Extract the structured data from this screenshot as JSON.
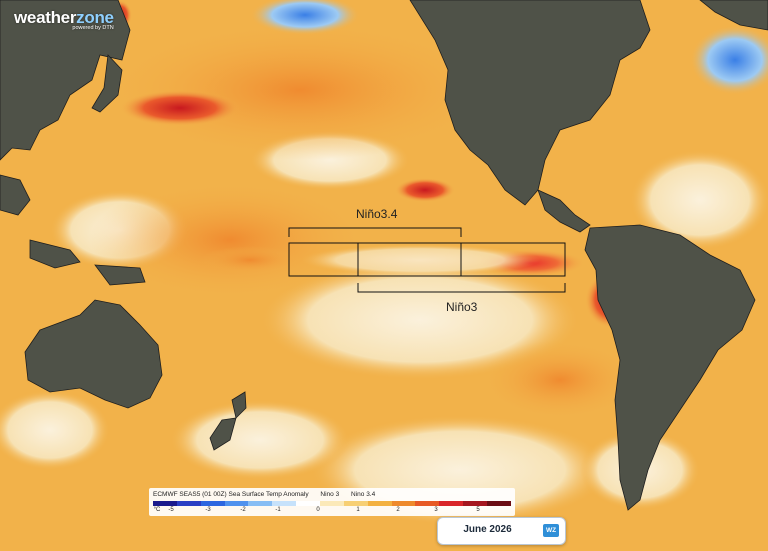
{
  "brand": {
    "name_a": "weather",
    "name_b": "zone",
    "tagline": "powered by DTN"
  },
  "regions": {
    "nino34_label": "Niño3.4",
    "nino3_label": "Niño3"
  },
  "legend": {
    "title": "ECMWF SEAS5 (01 00Z) Sea Surface Temp Anomaly",
    "key_nino3": "Nino 3",
    "key_nino34": "Nino 3.4",
    "unit": "°C",
    "ticks": [
      "-5",
      "-3",
      "-2",
      "-1",
      "0",
      "1",
      "2",
      "3",
      "5"
    ],
    "colors": [
      "#1a1a8c",
      "#2a3fc4",
      "#2d67e0",
      "#4f92ee",
      "#86bdf4",
      "#c6e2fb",
      "#ffffff",
      "#fbe9b8",
      "#f7cf73",
      "#f3b13f",
      "#ee8a2c",
      "#e75a26",
      "#d9262a",
      "#a51720",
      "#6b0d14"
    ]
  },
  "date_panel": {
    "date": "June 2026",
    "logo": "WZ"
  },
  "colors": {
    "ocean_warm": "#f2b24a",
    "ocean_neutral": "#f7e7c4",
    "anomaly_hot": "#d9262a",
    "anomaly_cold": "#2d67e0",
    "land": "#4f5248"
  }
}
